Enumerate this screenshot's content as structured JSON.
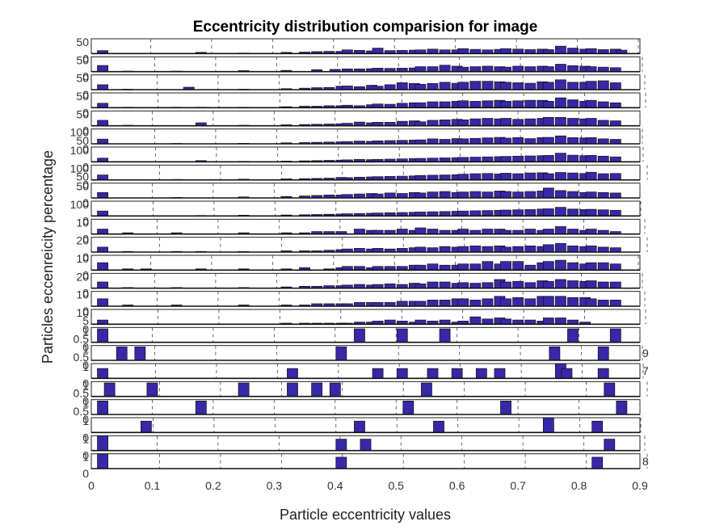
{
  "chart_data": {
    "type": "bar",
    "title": "Eccentricity distribution comparision for image",
    "xlabel": "Particle eccentricity values",
    "ylabel": "Particles eccenreicity percentage",
    "xlim": [
      0,
      0.9
    ],
    "xticks": [
      "0",
      "0.1",
      "0.2",
      "0.3",
      "0.4",
      "0.5",
      "0.6",
      "0.7",
      "0.8",
      "0.9"
    ],
    "bar_color": "#3728a8",
    "bar_edge": "#111111",
    "grid": "dashed vertical",
    "subplots": [
      {
        "yticks": [
          "50",
          "0"
        ],
        "ymax": 60,
        "bins": {
          "0.01": 12,
          "0.18": 5,
          "0.25": 2,
          "0.32": 5,
          "0.35": 6,
          "0.37": 8,
          "0.39": 9,
          "0.41": 9,
          "0.42": 15,
          "0.44": 13,
          "0.46": 11,
          "0.47": 22,
          "0.49": 12,
          "0.51": 13,
          "0.53": 14,
          "0.54": 15,
          "0.56": 18,
          "0.58": 15,
          "0.60": 15,
          "0.61": 20,
          "0.63": 17,
          "0.65": 15,
          "0.67": 17,
          "0.68": 20,
          "0.70": 18,
          "0.72": 16,
          "0.74": 18,
          "0.75": 16,
          "0.77": 30,
          "0.79": 22,
          "0.81": 18,
          "0.82": 20,
          "0.84": 16,
          "0.86": 18,
          "0.87": 14
        }
      },
      {
        "yticks": [
          "50",
          "0"
        ],
        "ymax": 60,
        "bins": {
          "0.01": 25,
          "0.06": 2,
          "0.14": 2,
          "0.25": 4,
          "0.32": 5,
          "0.37": 8,
          "0.40": 9,
          "0.42": 11,
          "0.44": 11,
          "0.46": 12,
          "0.47": 14,
          "0.49": 13,
          "0.51": 14,
          "0.53": 15,
          "0.54": 20,
          "0.56": 20,
          "0.58": 26,
          "0.60": 22,
          "0.61": 18,
          "0.63": 20,
          "0.65": 22,
          "0.67": 20,
          "0.68": 18,
          "0.70": 22,
          "0.72": 20,
          "0.74": 22,
          "0.75": 20,
          "0.77": 30,
          "0.79": 24,
          "0.81": 22,
          "0.82": 20,
          "0.84": 18,
          "0.86": 16
        }
      },
      {
        "yticks": [
          "50",
          "0"
        ],
        "ymax": 60,
        "bins": {
          "0.01": 20,
          "0.06": 2,
          "0.16": 10,
          "0.25": 2,
          "0.32": 4,
          "0.35": 6,
          "0.37": 8,
          "0.39": 9,
          "0.41": 14,
          "0.42": 15,
          "0.44": 12,
          "0.46": 18,
          "0.47": 14,
          "0.49": 20,
          "0.51": 28,
          "0.53": 25,
          "0.54": 22,
          "0.56": 25,
          "0.58": 30,
          "0.60": 26,
          "0.61": 30,
          "0.63": 34,
          "0.65": 34,
          "0.67": 32,
          "0.68": 30,
          "0.70": 28,
          "0.72": 26,
          "0.74": 32,
          "0.75": 30,
          "0.77": 40,
          "0.79": 30,
          "0.81": 30,
          "0.82": 34,
          "0.84": 36,
          "0.86": 28
        }
      },
      {
        "yticks": [
          "50",
          "0"
        ],
        "ymax": 60,
        "bins": {
          "0.01": 18,
          "0.06": 2,
          "0.14": 2,
          "0.18": 2,
          "0.25": 2,
          "0.32": 4,
          "0.35": 6,
          "0.37": 6,
          "0.39": 8,
          "0.41": 8,
          "0.42": 10,
          "0.44": 8,
          "0.46": 12,
          "0.47": 15,
          "0.49": 14,
          "0.51": 18,
          "0.53": 20,
          "0.54": 20,
          "0.56": 24,
          "0.58": 24,
          "0.60": 26,
          "0.61": 28,
          "0.63": 26,
          "0.65": 28,
          "0.67": 30,
          "0.68": 26,
          "0.70": 28,
          "0.72": 30,
          "0.74": 30,
          "0.75": 26,
          "0.77": 40,
          "0.79": 32,
          "0.81": 26,
          "0.82": 30,
          "0.84": 24,
          "0.86": 20
        }
      },
      {
        "yticks": [
          "50",
          "0"
        ],
        "ymax": 60,
        "bins": {
          "0.01": 22,
          "0.06": 2,
          "0.18": 12,
          "0.25": 2,
          "0.32": 4,
          "0.35": 5,
          "0.37": 6,
          "0.39": 7,
          "0.41": 8,
          "0.42": 10,
          "0.44": 15,
          "0.46": 12,
          "0.47": 14,
          "0.49": 14,
          "0.51": 18,
          "0.53": 20,
          "0.54": 16,
          "0.56": 22,
          "0.58": 24,
          "0.60": 26,
          "0.61": 24,
          "0.63": 28,
          "0.65": 30,
          "0.67": 28,
          "0.68": 30,
          "0.70": 26,
          "0.72": 28,
          "0.74": 30,
          "0.75": 34,
          "0.77": 34,
          "0.79": 30,
          "0.81": 28,
          "0.82": 30,
          "0.84": 22,
          "0.86": 20
        }
      },
      {
        "yticks": [
          "100",
          "50",
          "0"
        ],
        "ymax": 120,
        "bins": {
          "0.01": 38,
          "0.14": 3,
          "0.25": 4,
          "0.32": 8,
          "0.35": 10,
          "0.37": 12,
          "0.39": 14,
          "0.41": 16,
          "0.42": 18,
          "0.44": 22,
          "0.46": 20,
          "0.47": 24,
          "0.49": 26,
          "0.51": 28,
          "0.53": 30,
          "0.54": 32,
          "0.56": 40,
          "0.58": 36,
          "0.60": 42,
          "0.61": 40,
          "0.63": 44,
          "0.65": 48,
          "0.67": 52,
          "0.68": 46,
          "0.70": 50,
          "0.72": 42,
          "0.74": 50,
          "0.75": 52,
          "0.77": 64,
          "0.79": 50,
          "0.81": 48,
          "0.82": 50,
          "0.84": 40,
          "0.86": 36
        }
      },
      {
        "yticks": [
          "100",
          "0"
        ],
        "ymax": 120,
        "bins": {
          "0.01": 30,
          "0.06": 2,
          "0.14": 2,
          "0.18": 10,
          "0.25": 4,
          "0.32": 6,
          "0.35": 8,
          "0.37": 10,
          "0.39": 12,
          "0.41": 14,
          "0.42": 16,
          "0.44": 20,
          "0.46": 18,
          "0.47": 20,
          "0.49": 22,
          "0.51": 24,
          "0.53": 26,
          "0.54": 28,
          "0.56": 30,
          "0.58": 32,
          "0.60": 34,
          "0.61": 36,
          "0.63": 38,
          "0.65": 40,
          "0.67": 42,
          "0.68": 44,
          "0.70": 46,
          "0.72": 48,
          "0.74": 50,
          "0.75": 52,
          "0.77": 70,
          "0.79": 54,
          "0.81": 50,
          "0.82": 52,
          "0.84": 46,
          "0.86": 40
        }
      },
      {
        "yticks": [
          "100",
          "50",
          "0"
        ],
        "ymax": 120,
        "bins": {
          "0.01": 40,
          "0.14": 3,
          "0.25": 6,
          "0.32": 8,
          "0.35": 10,
          "0.37": 12,
          "0.39": 14,
          "0.41": 20,
          "0.42": 18,
          "0.44": 22,
          "0.46": 24,
          "0.47": 26,
          "0.49": 28,
          "0.51": 30,
          "0.53": 32,
          "0.54": 36,
          "0.56": 38,
          "0.58": 40,
          "0.60": 42,
          "0.61": 46,
          "0.63": 50,
          "0.65": 52,
          "0.67": 48,
          "0.68": 54,
          "0.70": 50,
          "0.72": 56,
          "0.74": 58,
          "0.75": 50,
          "0.77": 60,
          "0.79": 56,
          "0.81": 52,
          "0.82": 62,
          "0.84": 50,
          "0.86": 52
        }
      },
      {
        "yticks": [
          "50",
          "0"
        ],
        "ymax": 60,
        "bins": {
          "0.01": 22,
          "0.14": 2,
          "0.25": 4,
          "0.32": 6,
          "0.35": 8,
          "0.37": 10,
          "0.39": 12,
          "0.41": 12,
          "0.42": 14,
          "0.44": 16,
          "0.46": 18,
          "0.47": 16,
          "0.49": 20,
          "0.51": 18,
          "0.53": 22,
          "0.54": 20,
          "0.56": 24,
          "0.58": 26,
          "0.60": 22,
          "0.61": 24,
          "0.63": 26,
          "0.65": 24,
          "0.67": 28,
          "0.68": 26,
          "0.70": 24,
          "0.72": 26,
          "0.74": 28,
          "0.75": 40,
          "0.77": 30,
          "0.79": 26,
          "0.81": 22,
          "0.82": 24,
          "0.84": 22,
          "0.86": 20
        }
      },
      {
        "yticks": [
          "100",
          "0"
        ],
        "ymax": 120,
        "bins": {
          "0.01": 40,
          "0.06": 2,
          "0.18": 4,
          "0.25": 6,
          "0.32": 8,
          "0.35": 10,
          "0.37": 12,
          "0.39": 14,
          "0.41": 16,
          "0.42": 18,
          "0.44": 20,
          "0.46": 22,
          "0.47": 24,
          "0.49": 26,
          "0.51": 28,
          "0.53": 30,
          "0.54": 32,
          "0.56": 34,
          "0.58": 36,
          "0.60": 38,
          "0.61": 40,
          "0.63": 42,
          "0.65": 44,
          "0.67": 46,
          "0.68": 48,
          "0.70": 50,
          "0.72": 52,
          "0.74": 56,
          "0.75": 58,
          "0.77": 70,
          "0.79": 56,
          "0.81": 52,
          "0.82": 54,
          "0.84": 50,
          "0.86": 46
        }
      },
      {
        "yticks": [
          "10",
          "0"
        ],
        "ymax": 12,
        "bins": {
          "0.01": 4,
          "0.06": 1,
          "0.14": 1,
          "0.25": 1,
          "0.32": 1,
          "0.35": 1,
          "0.37": 2,
          "0.39": 2,
          "0.41": 2,
          "0.44": 4,
          "0.46": 3,
          "0.47": 3,
          "0.49": 3,
          "0.51": 4,
          "0.53": 3,
          "0.54": 5,
          "0.56": 4,
          "0.58": 3,
          "0.60": 3,
          "0.61": 4,
          "0.63": 3,
          "0.65": 4,
          "0.67": 4,
          "0.68": 3,
          "0.70": 3,
          "0.72": 4,
          "0.74": 3,
          "0.75": 4,
          "0.77": 6,
          "0.79": 4,
          "0.81": 3,
          "0.82": 4,
          "0.84": 3,
          "0.86": 2
        }
      },
      {
        "yticks": [
          "20",
          "0"
        ],
        "ymax": 24,
        "bins": {
          "0.01": 8,
          "0.06": 1,
          "0.14": 1,
          "0.18": 1,
          "0.25": 1,
          "0.32": 2,
          "0.35": 2,
          "0.37": 2,
          "0.39": 3,
          "0.41": 4,
          "0.42": 5,
          "0.44": 6,
          "0.46": 5,
          "0.47": 6,
          "0.49": 5,
          "0.51": 6,
          "0.53": 7,
          "0.54": 8,
          "0.56": 7,
          "0.58": 9,
          "0.60": 8,
          "0.61": 9,
          "0.63": 10,
          "0.65": 9,
          "0.67": 10,
          "0.68": 8,
          "0.70": 9,
          "0.72": 10,
          "0.74": 9,
          "0.75": 12,
          "0.77": 14,
          "0.79": 10,
          "0.81": 9,
          "0.82": 10,
          "0.84": 8,
          "0.86": 7
        }
      },
      {
        "yticks": [
          "10",
          "0"
        ],
        "ymax": 12,
        "bins": {
          "0.01": 6,
          "0.06": 1,
          "0.09": 1,
          "0.18": 1,
          "0.25": 1,
          "0.32": 1,
          "0.35": 2,
          "0.39": 1,
          "0.41": 2,
          "0.42": 3,
          "0.44": 3,
          "0.46": 2,
          "0.47": 3,
          "0.49": 3,
          "0.51": 3,
          "0.53": 4,
          "0.54": 4,
          "0.56": 5,
          "0.58": 4,
          "0.60": 4,
          "0.61": 5,
          "0.63": 5,
          "0.65": 7,
          "0.67": 5,
          "0.68": 7,
          "0.70": 7,
          "0.72": 4,
          "0.74": 6,
          "0.75": 7,
          "0.77": 8,
          "0.79": 6,
          "0.81": 5,
          "0.82": 6,
          "0.84": 6,
          "0.86": 5
        }
      },
      {
        "yticks": [
          "20",
          "0"
        ],
        "ymax": 24,
        "bins": {
          "0.01": 10,
          "0.06": 1,
          "0.14": 1,
          "0.25": 1,
          "0.32": 2,
          "0.35": 3,
          "0.37": 3,
          "0.39": 4,
          "0.41": 4,
          "0.42": 5,
          "0.44": 6,
          "0.46": 5,
          "0.47": 6,
          "0.49": 7,
          "0.51": 6,
          "0.53": 8,
          "0.54": 7,
          "0.56": 10,
          "0.58": 10,
          "0.60": 8,
          "0.61": 9,
          "0.63": 8,
          "0.65": 9,
          "0.67": 14,
          "0.68": 10,
          "0.70": 11,
          "0.72": 9,
          "0.74": 12,
          "0.75": 11,
          "0.77": 14,
          "0.79": 12,
          "0.81": 11,
          "0.82": 12,
          "0.84": 10,
          "0.86": 10
        }
      },
      {
        "yticks": [
          "10",
          "0"
        ],
        "ymax": 12,
        "bins": {
          "0.01": 6,
          "0.06": 1,
          "0.14": 1,
          "0.25": 1,
          "0.32": 1,
          "0.35": 1,
          "0.37": 2,
          "0.39": 2,
          "0.41": 2,
          "0.42": 2,
          "0.44": 3,
          "0.46": 3,
          "0.47": 3,
          "0.49": 3,
          "0.51": 4,
          "0.53": 4,
          "0.54": 4,
          "0.56": 5,
          "0.58": 5,
          "0.60": 6,
          "0.61": 6,
          "0.63": 5,
          "0.65": 6,
          "0.67": 8,
          "0.68": 6,
          "0.70": 7,
          "0.72": 6,
          "0.74": 8,
          "0.75": 8,
          "0.77": 8,
          "0.79": 7,
          "0.81": 7,
          "0.82": 6,
          "0.84": 5,
          "0.86": 5
        }
      },
      {
        "yticks": [
          "10",
          "5",
          "0"
        ],
        "ymax": 14,
        "bins": {
          "0.01": 4,
          "0.32": 1,
          "0.35": 1,
          "0.37": 1,
          "0.39": 1,
          "0.41": 1,
          "0.42": 1,
          "0.44": 2,
          "0.46": 2,
          "0.47": 3,
          "0.49": 4,
          "0.51": 3,
          "0.53": 2,
          "0.54": 4,
          "0.56": 3,
          "0.58": 4,
          "0.60": 2,
          "0.61": 3,
          "0.63": 7,
          "0.65": 5,
          "0.67": 6,
          "0.68": 5,
          "0.70": 4,
          "0.72": 4,
          "0.74": 3,
          "0.75": 6,
          "0.77": 6,
          "0.79": 4,
          "0.81": 2
        }
      },
      {
        "yticks": [
          "1",
          "0.5",
          "0"
        ],
        "ymax": 1.1,
        "bins": {
          "0.01": 1,
          "0.44": 1,
          "0.51": 1,
          "0.58": 1,
          "0.79": 1,
          "0.86": 1
        }
      },
      {
        "yticks": [
          "1",
          "0.5",
          "0"
        ],
        "ymax": 1.1,
        "right_label": "9",
        "bins": {
          "0.05": 1,
          "0.08": 1,
          "0.41": 1,
          "0.76": 1,
          "0.84": 1
        }
      },
      {
        "yticks": [
          "1",
          "0"
        ],
        "ymax": 1.5,
        "right_label": "7",
        "bins": {
          "0.01": 1,
          "0.33": 1,
          "0.47": 1,
          "0.51": 1,
          "0.56": 1,
          "0.6": 1,
          "0.64": 1,
          "0.67": 1,
          "0.77": 1.5,
          "0.78": 1,
          "0.84": 1
        }
      },
      {
        "yticks": [
          "1",
          "0.5",
          "0"
        ],
        "ymax": 1.1,
        "bins": {
          "0.03": 1,
          "0.1": 1,
          "0.25": 1,
          "0.33": 1,
          "0.37": 1,
          "0.4": 1,
          "0.55": 1,
          "0.85": 1
        }
      },
      {
        "yticks": [
          "1",
          "0.5",
          "0"
        ],
        "ymax": 1.1,
        "bins": {
          "0.01": 1,
          "0.18": 1,
          "0.52": 1,
          "0.68": 1,
          "0.87": 1
        }
      },
      {
        "yticks": [
          "1",
          "0"
        ],
        "ymax": 1.3,
        "bins": {
          "0.09": 1,
          "0.44": 1,
          "0.57": 1,
          "0.75": 1.6,
          "0.83": 1
        }
      },
      {
        "yticks": [
          "1",
          "0"
        ],
        "ymax": 1.3,
        "bins": {
          "0.01": 1.5,
          "0.41": 1,
          "0.45": 1,
          "0.85": 1
        }
      },
      {
        "yticks": [
          "1",
          "0"
        ],
        "ymax": 1.3,
        "right_label": "8",
        "bins": {
          "0.01": 1.5,
          "0.41": 1,
          "0.83": 1
        }
      }
    ]
  }
}
